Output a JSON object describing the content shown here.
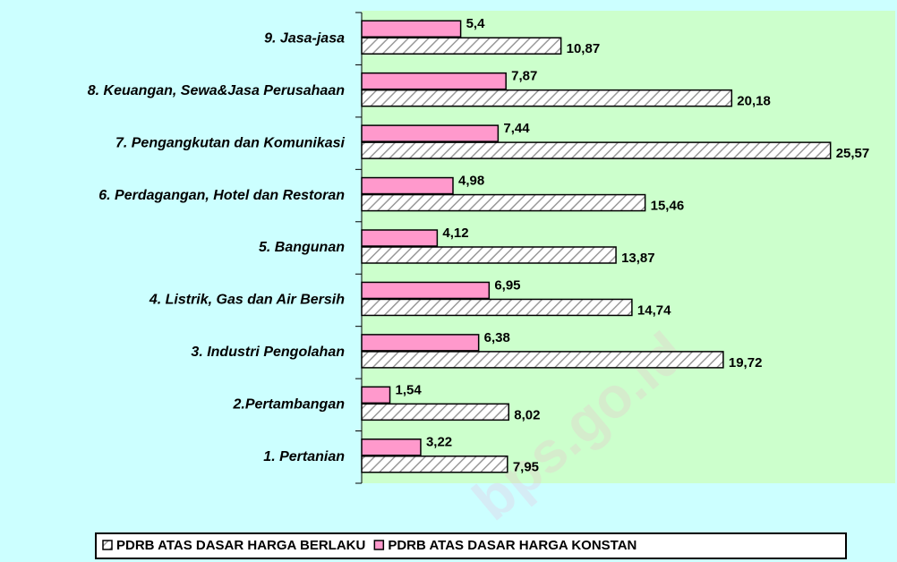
{
  "chart_data": {
    "type": "barh",
    "categories": [
      "1. Pertanian",
      "2.Pertambangan",
      "3. Industri Pengolahan",
      "4. Listrik, Gas dan Air Bersih",
      "5. Bangunan",
      "6. Perdagangan, Hotel dan Restoran",
      "7. Pengangkutan dan Komunikasi",
      "8. Keuangan, Sewa&Jasa Perusahaan",
      "9. Jasa-jasa"
    ],
    "series": [
      {
        "name": "PDRB ATAS DASAR HARGA BERLAKU",
        "color": "#ffffff",
        "pattern": "hatch",
        "values": [
          7.95,
          8.02,
          19.72,
          14.74,
          13.87,
          15.46,
          25.57,
          20.18,
          10.87
        ],
        "value_labels": [
          "7,95",
          "8,02",
          "19,72",
          "14,74",
          "13,87",
          "15,46",
          "25,57",
          "20,18",
          "10,87"
        ]
      },
      {
        "name": "PDRB ATAS DASAR HARGA KONSTAN",
        "color": "#ff99cc",
        "values": [
          3.22,
          1.54,
          6.38,
          6.95,
          4.12,
          4.98,
          7.44,
          7.87,
          5.4
        ],
        "value_labels": [
          "3,22",
          "1,54",
          "6,38",
          "6,95",
          "4,12",
          "4,98",
          "7,44",
          "7,87",
          "5,4"
        ]
      }
    ],
    "xlim": [
      0,
      29.1
    ],
    "legend": "bottom",
    "watermark": "bps.go.id"
  }
}
